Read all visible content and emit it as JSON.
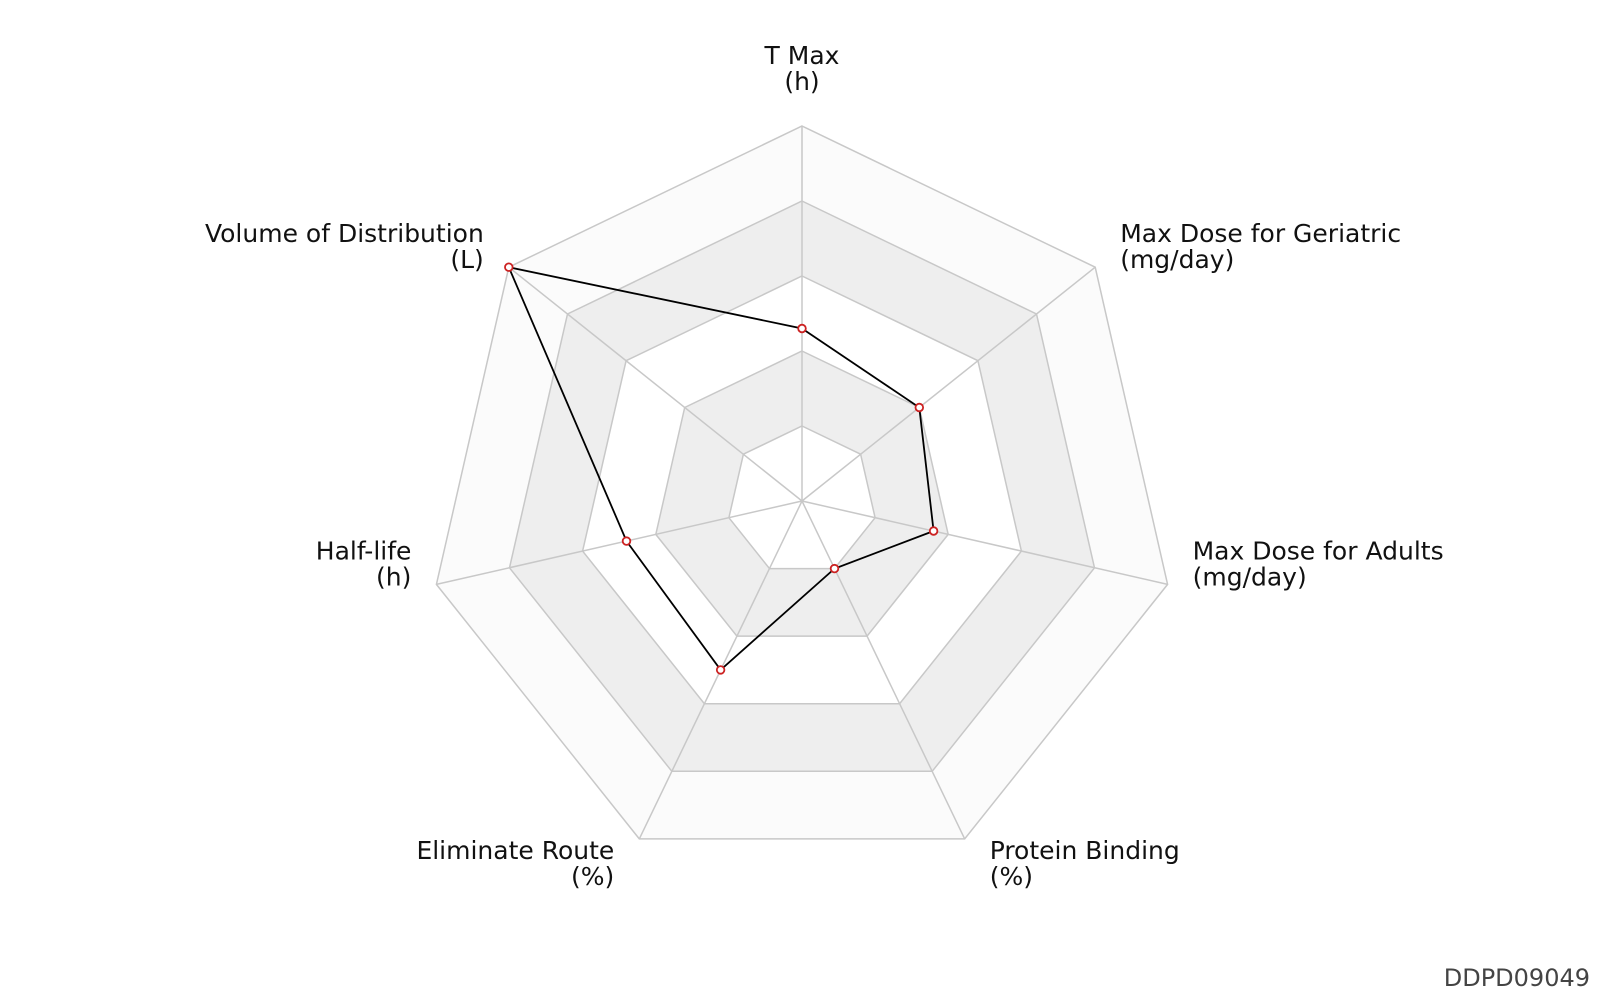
{
  "chart_data": {
    "type": "radar",
    "axes": [
      {
        "name": "T Max",
        "unit": "(h)"
      },
      {
        "name": "Max Dose for Geriatric",
        "unit": "(mg/day)"
      },
      {
        "name": "Max Dose for Adults",
        "unit": "(mg/day)"
      },
      {
        "name": "Protein Binding",
        "unit": "(%)"
      },
      {
        "name": "Eliminate Route",
        "unit": "(%)"
      },
      {
        "name": "Half-life",
        "unit": "(h)"
      },
      {
        "name": "Volume of Distribution",
        "unit": "(L)"
      }
    ],
    "levels": 5,
    "scale_max": 5,
    "series": [
      {
        "values": [
          2.3,
          2.0,
          1.8,
          1.0,
          2.5,
          2.4,
          5.0
        ]
      }
    ],
    "grid": true,
    "band_colors": [
      "#ffffff",
      "#eeeeee",
      "#ffffff",
      "#eeeeee",
      "#fbfbfb"
    ],
    "grid_color": "#c8c8c8",
    "line_color": "#000000",
    "marker_color": "#cc2222"
  },
  "footer": {
    "id": "DDPD09049"
  }
}
